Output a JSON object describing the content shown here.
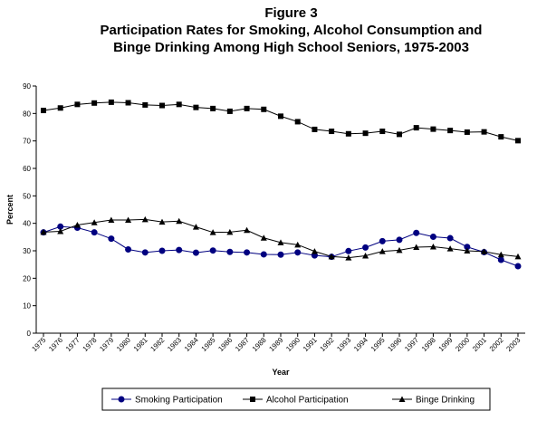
{
  "figure_label": "Figure 3",
  "chart_data": {
    "type": "line",
    "title_lines": [
      "Participation Rates for Smoking, Alcohol Consumption and",
      "Binge Drinking Among High School Seniors, 1975-2003"
    ],
    "xlabel": "Year",
    "ylabel": "Percent",
    "ylim": [
      0,
      90
    ],
    "yticks": [
      0,
      10,
      20,
      30,
      40,
      50,
      60,
      70,
      80,
      90
    ],
    "x": [
      "1975",
      "1976",
      "1977",
      "1978",
      "1979",
      "1980",
      "1981",
      "1982",
      "1983",
      "1984",
      "1985",
      "1986",
      "1987",
      "1988",
      "1989",
      "1990",
      "1991",
      "1992",
      "1993",
      "1994",
      "1995",
      "1996",
      "1997",
      "1998",
      "1999",
      "2000",
      "2001",
      "2002",
      "2003"
    ],
    "grid": false,
    "legend_position": "bottom",
    "series": [
      {
        "name": "Smoking Participation",
        "marker": "circle",
        "color": "#000080",
        "values": [
          36.7,
          38.8,
          38.4,
          36.7,
          34.4,
          30.5,
          29.4,
          30.0,
          30.3,
          29.3,
          30.1,
          29.6,
          29.4,
          28.7,
          28.6,
          29.4,
          28.3,
          27.8,
          29.9,
          31.2,
          33.5,
          34.0,
          36.5,
          35.1,
          34.6,
          31.4,
          29.5,
          26.7,
          24.4
        ]
      },
      {
        "name": "Alcohol Participation",
        "marker": "square",
        "color": "#000000",
        "values": [
          81.1,
          82.0,
          83.3,
          83.8,
          84.1,
          83.9,
          83.1,
          82.9,
          83.3,
          82.2,
          81.8,
          80.8,
          81.8,
          81.5,
          79.0,
          77.0,
          74.2,
          73.5,
          72.6,
          72.8,
          73.5,
          72.4,
          74.8,
          74.3,
          73.8,
          73.2,
          73.3,
          71.5,
          70.1
        ]
      },
      {
        "name": "Binge Drinking",
        "marker": "triangle",
        "color": "#000000",
        "values": [
          36.8,
          37.1,
          39.4,
          40.3,
          41.2,
          41.2,
          41.4,
          40.5,
          40.8,
          38.7,
          36.7,
          36.8,
          37.5,
          34.7,
          33.0,
          32.2,
          29.8,
          27.9,
          27.5,
          28.2,
          29.8,
          30.2,
          31.3,
          31.5,
          30.8,
          30.0,
          29.7,
          28.6,
          27.9
        ]
      }
    ]
  }
}
